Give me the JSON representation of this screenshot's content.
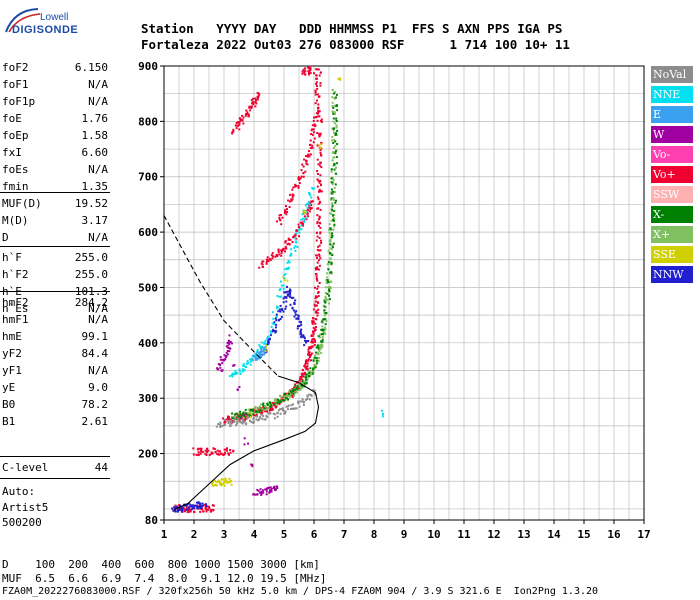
{
  "logo": {
    "top": "Lowell",
    "main": "DIGISONDE"
  },
  "header": {
    "line1": "Station   YYYY DAY   DDD HHMMSS P1  FFS S AXN PPS IGA PS",
    "line2": "Fortaleza 2022 Out03 276 083000 RSF      1 714 100 10+ 11"
  },
  "params_group1": [
    {
      "name": "foF2",
      "value": "6.150"
    },
    {
      "name": "foF1",
      "value": "N/A"
    },
    {
      "name": "foF1p",
      "value": "N/A"
    },
    {
      "name": "foE",
      "value": "1.76"
    },
    {
      "name": "foEp",
      "value": "1.58"
    },
    {
      "name": "fxI",
      "value": "6.60"
    },
    {
      "name": "foEs",
      "value": "N/A"
    },
    {
      "name": "fmin",
      "value": "1.35"
    }
  ],
  "params_group2": [
    {
      "name": "MUF(D)",
      "value": "19.52"
    },
    {
      "name": "M(D)",
      "value": "3.17"
    },
    {
      "name": "D",
      "value": "N/A"
    }
  ],
  "params_group3": [
    {
      "name": "h`F",
      "value": "255.0"
    },
    {
      "name": "h`F2",
      "value": "255.0"
    },
    {
      "name": "h`E",
      "value": "101.3"
    },
    {
      "name": "h`Es",
      "value": "N/A"
    }
  ],
  "params_group4": [
    {
      "name": "hmF2",
      "value": "284.2"
    },
    {
      "name": "hmF1",
      "value": "N/A"
    },
    {
      "name": "hmE",
      "value": "99.1"
    },
    {
      "name": "yF2",
      "value": "84.4"
    },
    {
      "name": "yF1",
      "value": "N/A"
    },
    {
      "name": "yE",
      "value": "9.0"
    },
    {
      "name": "B0",
      "value": "78.2"
    },
    {
      "name": "B1",
      "value": "2.61"
    }
  ],
  "c_level": {
    "name": "C-level",
    "value": "44"
  },
  "auto": {
    "line1": "Auto:",
    "line2": "Artist5",
    "line3": "500200"
  },
  "legend": [
    {
      "label": "NoVal",
      "color": "#8c8c8c"
    },
    {
      "label": "NNE",
      "color": "#00e0f0"
    },
    {
      "label": "E",
      "color": "#3aa0f0"
    },
    {
      "label": "W",
      "color": "#a000a0"
    },
    {
      "label": "Vo-",
      "color": "#ff40b0"
    },
    {
      "label": "Vo+",
      "color": "#f00030"
    },
    {
      "label": "SSW",
      "color": "#ffb0b0"
    },
    {
      "label": "X-",
      "color": "#008000"
    },
    {
      "label": "X+",
      "color": "#80c060"
    },
    {
      "label": "SSE",
      "color": "#d0d000"
    },
    {
      "label": "NNW",
      "color": "#2020d0"
    }
  ],
  "footer": {
    "line1": "D    100  200  400  600  800 1000 1500 3000 [km]",
    "line2": "MUF  6.5  6.6  6.9  7.4  8.0  9.1 12.0 19.5 [MHz]",
    "line3": "FZA0M_2022276083000.RSF / 320fx256h 50 kHz 5.0 km / DPS-4 FZA0M 904 / 3.9 S 321.6 E  Ion2Png 1.3.20"
  },
  "chart_data": {
    "type": "scatter",
    "x_ticks": [
      1,
      2,
      3,
      4,
      5,
      6,
      7,
      8,
      9,
      10,
      11,
      12,
      13,
      14,
      15,
      16,
      17
    ],
    "y_ticks": [
      80,
      200,
      300,
      400,
      500,
      600,
      700,
      800,
      900
    ],
    "xlim": [
      1,
      17
    ],
    "ylim": [
      80,
      900
    ],
    "grid": true,
    "profile_solid": [
      [
        1.35,
        99
      ],
      [
        1.8,
        110
      ],
      [
        2.5,
        145
      ],
      [
        3.2,
        180
      ],
      [
        4.0,
        205
      ],
      [
        5.0,
        225
      ],
      [
        5.7,
        240
      ],
      [
        6.05,
        255
      ],
      [
        6.15,
        284
      ],
      [
        6.05,
        310
      ],
      [
        5.5,
        328
      ],
      [
        4.8,
        340
      ]
    ],
    "profile_dashed": [
      [
        1.0,
        630
      ],
      [
        1.5,
        580
      ],
      [
        2.2,
        510
      ],
      [
        3.0,
        440
      ],
      [
        3.8,
        395
      ],
      [
        4.4,
        362
      ],
      [
        4.8,
        340
      ]
    ],
    "traces": [
      {
        "series": "Vo+",
        "points": [
          [
            3.0,
            262
          ],
          [
            3.3,
            264
          ],
          [
            3.6,
            268
          ],
          [
            4.0,
            275
          ],
          [
            4.3,
            280
          ],
          [
            4.6,
            288
          ],
          [
            4.9,
            298
          ],
          [
            5.2,
            310
          ],
          [
            5.4,
            322
          ],
          [
            5.6,
            340
          ],
          [
            5.75,
            360
          ],
          [
            5.85,
            385
          ],
          [
            5.95,
            410
          ],
          [
            6.0,
            440
          ],
          [
            6.05,
            480
          ],
          [
            6.1,
            530
          ],
          [
            6.12,
            580
          ],
          [
            6.14,
            630
          ],
          [
            6.15,
            690
          ],
          [
            6.15,
            750
          ],
          [
            6.15,
            820
          ]
        ]
      },
      {
        "series": "X+",
        "points": [
          [
            3.3,
            268
          ],
          [
            3.7,
            274
          ],
          [
            4.1,
            282
          ],
          [
            4.5,
            290
          ],
          [
            4.9,
            300
          ],
          [
            5.3,
            312
          ],
          [
            5.6,
            328
          ],
          [
            5.85,
            345
          ],
          [
            6.05,
            370
          ],
          [
            6.2,
            400
          ],
          [
            6.32,
            440
          ],
          [
            6.42,
            490
          ],
          [
            6.5,
            540
          ],
          [
            6.55,
            600
          ],
          [
            6.6,
            660
          ],
          [
            6.62,
            720
          ],
          [
            6.64,
            790
          ],
          [
            6.65,
            860
          ]
        ]
      },
      {
        "series": "Vo+",
        "points": [
          [
            4.2,
            540
          ],
          [
            4.6,
            555
          ],
          [
            5.0,
            575
          ],
          [
            5.4,
            600
          ],
          [
            5.7,
            630
          ],
          [
            5.9,
            660
          ]
        ]
      },
      {
        "series": "Vo+",
        "points": [
          [
            4.8,
            620
          ],
          [
            5.2,
            660
          ],
          [
            5.5,
            700
          ],
          [
            5.8,
            740
          ],
          [
            6.0,
            790
          ],
          [
            6.1,
            850
          ],
          [
            6.12,
            895
          ]
        ]
      },
      {
        "series": "Vo+",
        "points": [
          [
            3.3,
            785
          ],
          [
            3.6,
            805
          ],
          [
            3.9,
            830
          ],
          [
            4.1,
            850
          ]
        ]
      },
      {
        "series": "Vo+",
        "points": [
          [
            5.6,
            890
          ],
          [
            5.9,
            895
          ]
        ]
      },
      {
        "series": "Vo+",
        "points": [
          [
            2.0,
            205
          ],
          [
            2.4,
            205
          ],
          [
            2.8,
            205
          ],
          [
            3.2,
            206
          ]
        ]
      },
      {
        "series": "Vo+",
        "points": [
          [
            1.3,
            104
          ],
          [
            1.6,
            102
          ],
          [
            1.9,
            102
          ],
          [
            2.3,
            103
          ],
          [
            2.6,
            103
          ]
        ]
      },
      {
        "series": "NNW",
        "points": [
          [
            1.3,
            100
          ],
          [
            1.6,
            104
          ],
          [
            2.0,
            108
          ],
          [
            2.3,
            108
          ]
        ]
      },
      {
        "series": "NNW",
        "points": [
          [
            4.3,
            385
          ],
          [
            4.6,
            420
          ],
          [
            4.9,
            460
          ],
          [
            5.1,
            500
          ],
          [
            5.3,
            470
          ],
          [
            5.5,
            430
          ],
          [
            5.7,
            400
          ]
        ]
      },
      {
        "series": "NNE",
        "points": [
          [
            3.2,
            340
          ],
          [
            3.6,
            355
          ],
          [
            4.0,
            380
          ],
          [
            4.4,
            410
          ],
          [
            4.9,
            500
          ],
          [
            5.2,
            560
          ],
          [
            5.6,
            620
          ],
          [
            5.9,
            680
          ]
        ]
      },
      {
        "series": "E",
        "points": [
          [
            4.0,
            372
          ],
          [
            4.2,
            380
          ],
          [
            4.3,
            390
          ]
        ]
      },
      {
        "series": "W",
        "points": [
          [
            2.8,
            350
          ],
          [
            3.0,
            380
          ],
          [
            3.2,
            410
          ],
          [
            4.0,
            130
          ],
          [
            4.4,
            135
          ],
          [
            4.7,
            138
          ]
        ]
      },
      {
        "series": "X-",
        "points": [
          [
            3.3,
            270
          ],
          [
            4.0,
            278
          ],
          [
            4.7,
            295
          ],
          [
            5.4,
            318
          ],
          [
            5.9,
            350
          ],
          [
            6.2,
            410
          ],
          [
            6.4,
            470
          ],
          [
            6.55,
            560
          ],
          [
            6.62,
            660
          ],
          [
            6.66,
            760
          ],
          [
            6.68,
            850
          ]
        ]
      },
      {
        "series": "SSE",
        "points": [
          [
            2.6,
            145
          ],
          [
            2.9,
            150
          ],
          [
            3.2,
            150
          ],
          [
            6.8,
            880
          ]
        ]
      },
      {
        "series": "NNE",
        "points": [
          [
            8.2,
            275
          ]
        ]
      },
      {
        "series": "NoVal",
        "points": [
          [
            2.8,
            255
          ],
          [
            3.3,
            258
          ],
          [
            3.8,
            262
          ],
          [
            4.4,
            268
          ],
          [
            5.0,
            278
          ],
          [
            5.5,
            292
          ],
          [
            6.0,
            312
          ]
        ]
      }
    ]
  }
}
